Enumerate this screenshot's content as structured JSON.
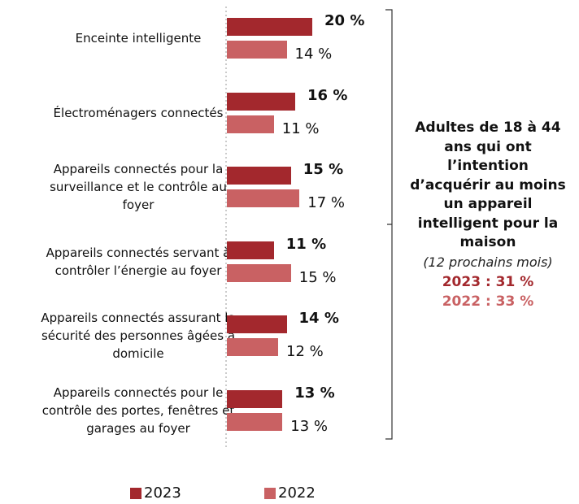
{
  "chart_data": {
    "type": "bar",
    "orientation": "horizontal",
    "categories": [
      "Enceinte intelligente",
      "Électroménagers connectés",
      "Appareils connectés pour la surveillance et le contrôle au foyer",
      "Appareils connectés servant à contrôler l’énergie au foyer",
      "Appareils connectés assurant la sécurité des personnes âgées à domicile",
      "Appareils connectés pour le contrôle des portes, fenêtres et garages au foyer"
    ],
    "series": [
      {
        "name": "2023",
        "color": "#a3282d",
        "values": [
          20,
          16,
          15,
          11,
          14,
          13
        ],
        "value_labels": [
          "20 %",
          "16 %",
          "15 %",
          "11 %",
          "14 %",
          "13 %"
        ]
      },
      {
        "name": "2022",
        "color": "#c96163",
        "values": [
          14,
          11,
          17,
          15,
          12,
          13
        ],
        "value_labels": [
          "14 %",
          "11 %",
          "17 %",
          "15 %",
          "12 %",
          "13 %"
        ]
      }
    ],
    "annotation": {
      "text": "Adultes de 18 à 44 ans qui ont l’intention d’acquérir au moins un appareil intelligent pour la maison",
      "note": "(12 prochains mois)",
      "line_2023": "2023 : 31 %",
      "line_2022": "2022 : 33 %"
    },
    "legend": "bottom"
  }
}
